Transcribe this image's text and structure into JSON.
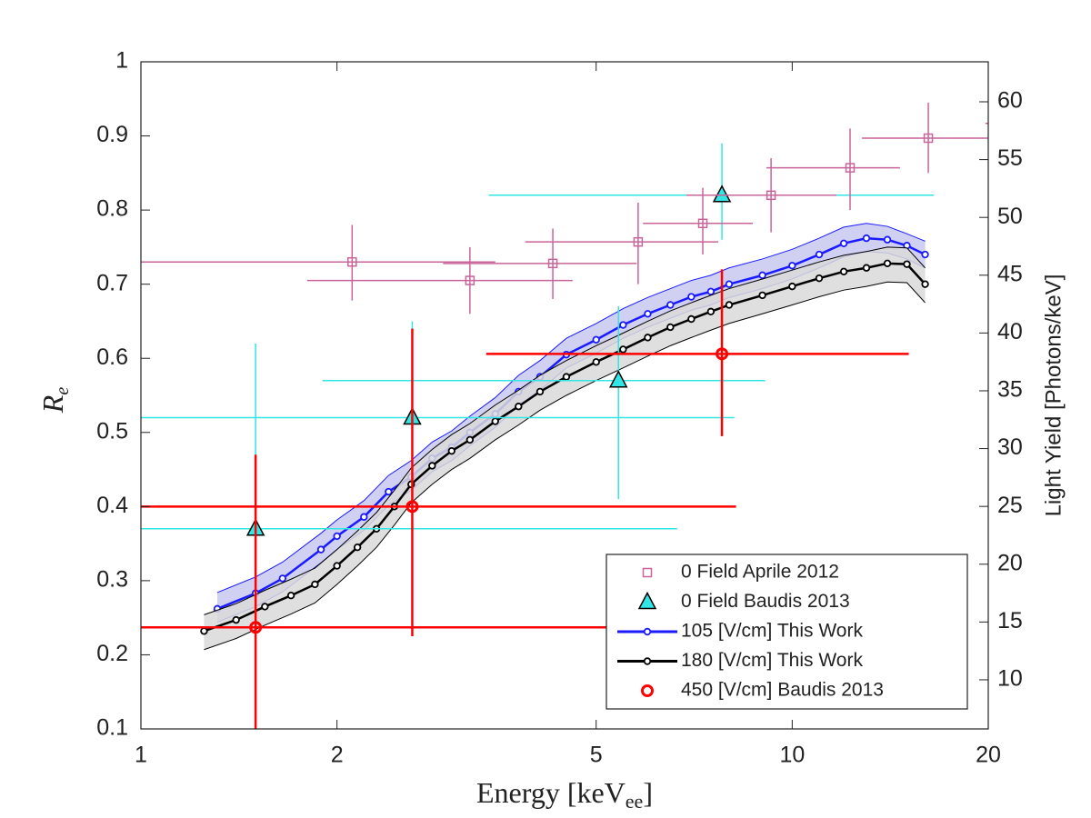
{
  "chart_data": {
    "type": "errorbar",
    "x_label": [
      "Energy [keV",
      "ee",
      "]"
    ],
    "y_label": [
      "R",
      "e"
    ],
    "y2_label": "Light Yield [Photons/keV]",
    "xscale": "log",
    "xlim": [
      1,
      20
    ],
    "xticks": [
      1,
      2,
      5,
      10,
      20
    ],
    "ylim": [
      0.1,
      1
    ],
    "yticks": [
      0.1,
      0.2,
      0.3,
      0.4,
      0.5,
      0.6,
      0.7,
      0.8,
      0.9,
      1
    ],
    "y2lim": [
      5.75,
      63.46
    ],
    "y2ticks": [
      10,
      15,
      20,
      25,
      30,
      35,
      40,
      45,
      50,
      55,
      60
    ],
    "legend": "lower right",
    "series": [
      {
        "name": "0 Field Aprile 2012",
        "color": "#c8649a",
        "marker": "square",
        "x": [
          2.11,
          3.2,
          4.29,
          5.8,
          7.29,
          9.28,
          12.27,
          16.18,
          23
        ],
        "values": [
          0.73,
          0.705,
          0.728,
          0.757,
          0.782,
          0.82,
          0.857,
          0.897,
          0.917
        ],
        "x_lower": [
          1,
          1.8,
          2.91,
          3.89,
          5.9,
          6.88,
          9.13,
          12.79,
          19.8
        ],
        "x_upper": [
          3.5,
          4.6,
          5.77,
          7.7,
          8.7,
          11.69,
          14.64,
          20.5,
          27
        ],
        "y_lower": [
          0.678,
          0.66,
          0.68,
          0.7,
          0.74,
          0.77,
          0.8,
          0.85,
          0.87
        ],
        "y_upper": [
          0.78,
          0.75,
          0.775,
          0.81,
          0.83,
          0.87,
          0.91,
          0.945,
          0.96
        ]
      },
      {
        "name": "0 Field Baudis 2013",
        "color": "#33e6e6",
        "marker": "triangle",
        "x": [
          1.5,
          2.61,
          5.41,
          7.8
        ],
        "values": [
          0.37,
          0.52,
          0.57,
          0.82
        ],
        "x_lower": [
          1,
          1,
          1.9,
          3.42
        ],
        "x_upper": [
          6.66,
          8.15,
          9.09,
          16.5
        ],
        "y_lower": [
          0.12,
          0.35,
          0.41,
          0.76
        ],
        "y_upper": [
          0.62,
          0.65,
          0.67,
          0.89
        ]
      },
      {
        "name": "105 [V/cm] This Work",
        "color": "#1a1aff",
        "marker": "circle",
        "band_color": "#c8c8f0",
        "x": [
          1.31,
          1.5,
          1.65,
          1.89,
          2.0,
          2.2,
          2.4,
          2.6,
          2.8,
          3.0,
          3.2,
          3.5,
          3.8,
          4.1,
          4.5,
          5.0,
          5.5,
          6.0,
          6.5,
          7.0,
          7.5,
          8.0,
          9.0,
          10,
          11,
          12,
          13,
          14,
          15,
          16
        ],
        "values": [
          0.262,
          0.283,
          0.303,
          0.342,
          0.36,
          0.386,
          0.42,
          0.44,
          0.465,
          0.48,
          0.5,
          0.525,
          0.555,
          0.575,
          0.605,
          0.625,
          0.645,
          0.66,
          0.672,
          0.683,
          0.69,
          0.7,
          0.712,
          0.725,
          0.74,
          0.755,
          0.762,
          0.76,
          0.752,
          0.74
        ],
        "upper": [
          0.284,
          0.305,
          0.325,
          0.364,
          0.382,
          0.408,
          0.442,
          0.462,
          0.487,
          0.502,
          0.522,
          0.547,
          0.577,
          0.597,
          0.627,
          0.647,
          0.667,
          0.682,
          0.694,
          0.705,
          0.712,
          0.722,
          0.734,
          0.747,
          0.762,
          0.777,
          0.782,
          0.778,
          0.768,
          0.758
        ],
        "lower": [
          0.244,
          0.265,
          0.285,
          0.324,
          0.342,
          0.368,
          0.402,
          0.422,
          0.447,
          0.462,
          0.482,
          0.507,
          0.537,
          0.557,
          0.587,
          0.607,
          0.627,
          0.642,
          0.654,
          0.665,
          0.672,
          0.682,
          0.694,
          0.707,
          0.722,
          0.737,
          0.744,
          0.742,
          0.734,
          0.722
        ]
      },
      {
        "name": "180 [V/cm] This Work",
        "color": "#000000",
        "marker": "circle",
        "band_color": "#d9d9d9",
        "x": [
          1.25,
          1.4,
          1.55,
          1.7,
          1.85,
          2.0,
          2.15,
          2.3,
          2.45,
          2.6,
          2.8,
          3.0,
          3.2,
          3.5,
          3.8,
          4.1,
          4.5,
          5.0,
          5.5,
          6.0,
          6.5,
          7.0,
          7.5,
          8.0,
          9.0,
          10,
          11,
          12,
          13,
          14,
          15,
          16
        ],
        "values": [
          0.232,
          0.247,
          0.265,
          0.28,
          0.295,
          0.32,
          0.345,
          0.37,
          0.4,
          0.43,
          0.455,
          0.475,
          0.49,
          0.515,
          0.535,
          0.555,
          0.575,
          0.595,
          0.612,
          0.628,
          0.642,
          0.653,
          0.663,
          0.672,
          0.685,
          0.697,
          0.708,
          0.717,
          0.722,
          0.728,
          0.727,
          0.7
        ],
        "upper": [
          0.254,
          0.269,
          0.287,
          0.302,
          0.317,
          0.342,
          0.367,
          0.392,
          0.422,
          0.452,
          0.477,
          0.497,
          0.512,
          0.537,
          0.557,
          0.577,
          0.597,
          0.617,
          0.634,
          0.65,
          0.664,
          0.675,
          0.685,
          0.694,
          0.707,
          0.719,
          0.73,
          0.739,
          0.744,
          0.75,
          0.749,
          0.722
        ],
        "lower": [
          0.207,
          0.222,
          0.24,
          0.255,
          0.27,
          0.295,
          0.32,
          0.345,
          0.375,
          0.405,
          0.43,
          0.45,
          0.465,
          0.49,
          0.51,
          0.53,
          0.55,
          0.57,
          0.587,
          0.603,
          0.617,
          0.628,
          0.638,
          0.647,
          0.66,
          0.672,
          0.683,
          0.692,
          0.697,
          0.703,
          0.702,
          0.675
        ]
      },
      {
        "name": "450 [V/cm] Baudis 2013",
        "color": "#ff0000",
        "marker": "ring",
        "x": [
          1.5,
          2.61,
          7.8
        ],
        "values": [
          0.237,
          0.4,
          0.606
        ],
        "x_lower": [
          1,
          1,
          3.39
        ],
        "x_upper": [
          5.25,
          8.2,
          15.1
        ],
        "y_lower": [
          0,
          0.225,
          0.495
        ],
        "y_upper": [
          0.47,
          0.64,
          0.72
        ]
      }
    ]
  }
}
